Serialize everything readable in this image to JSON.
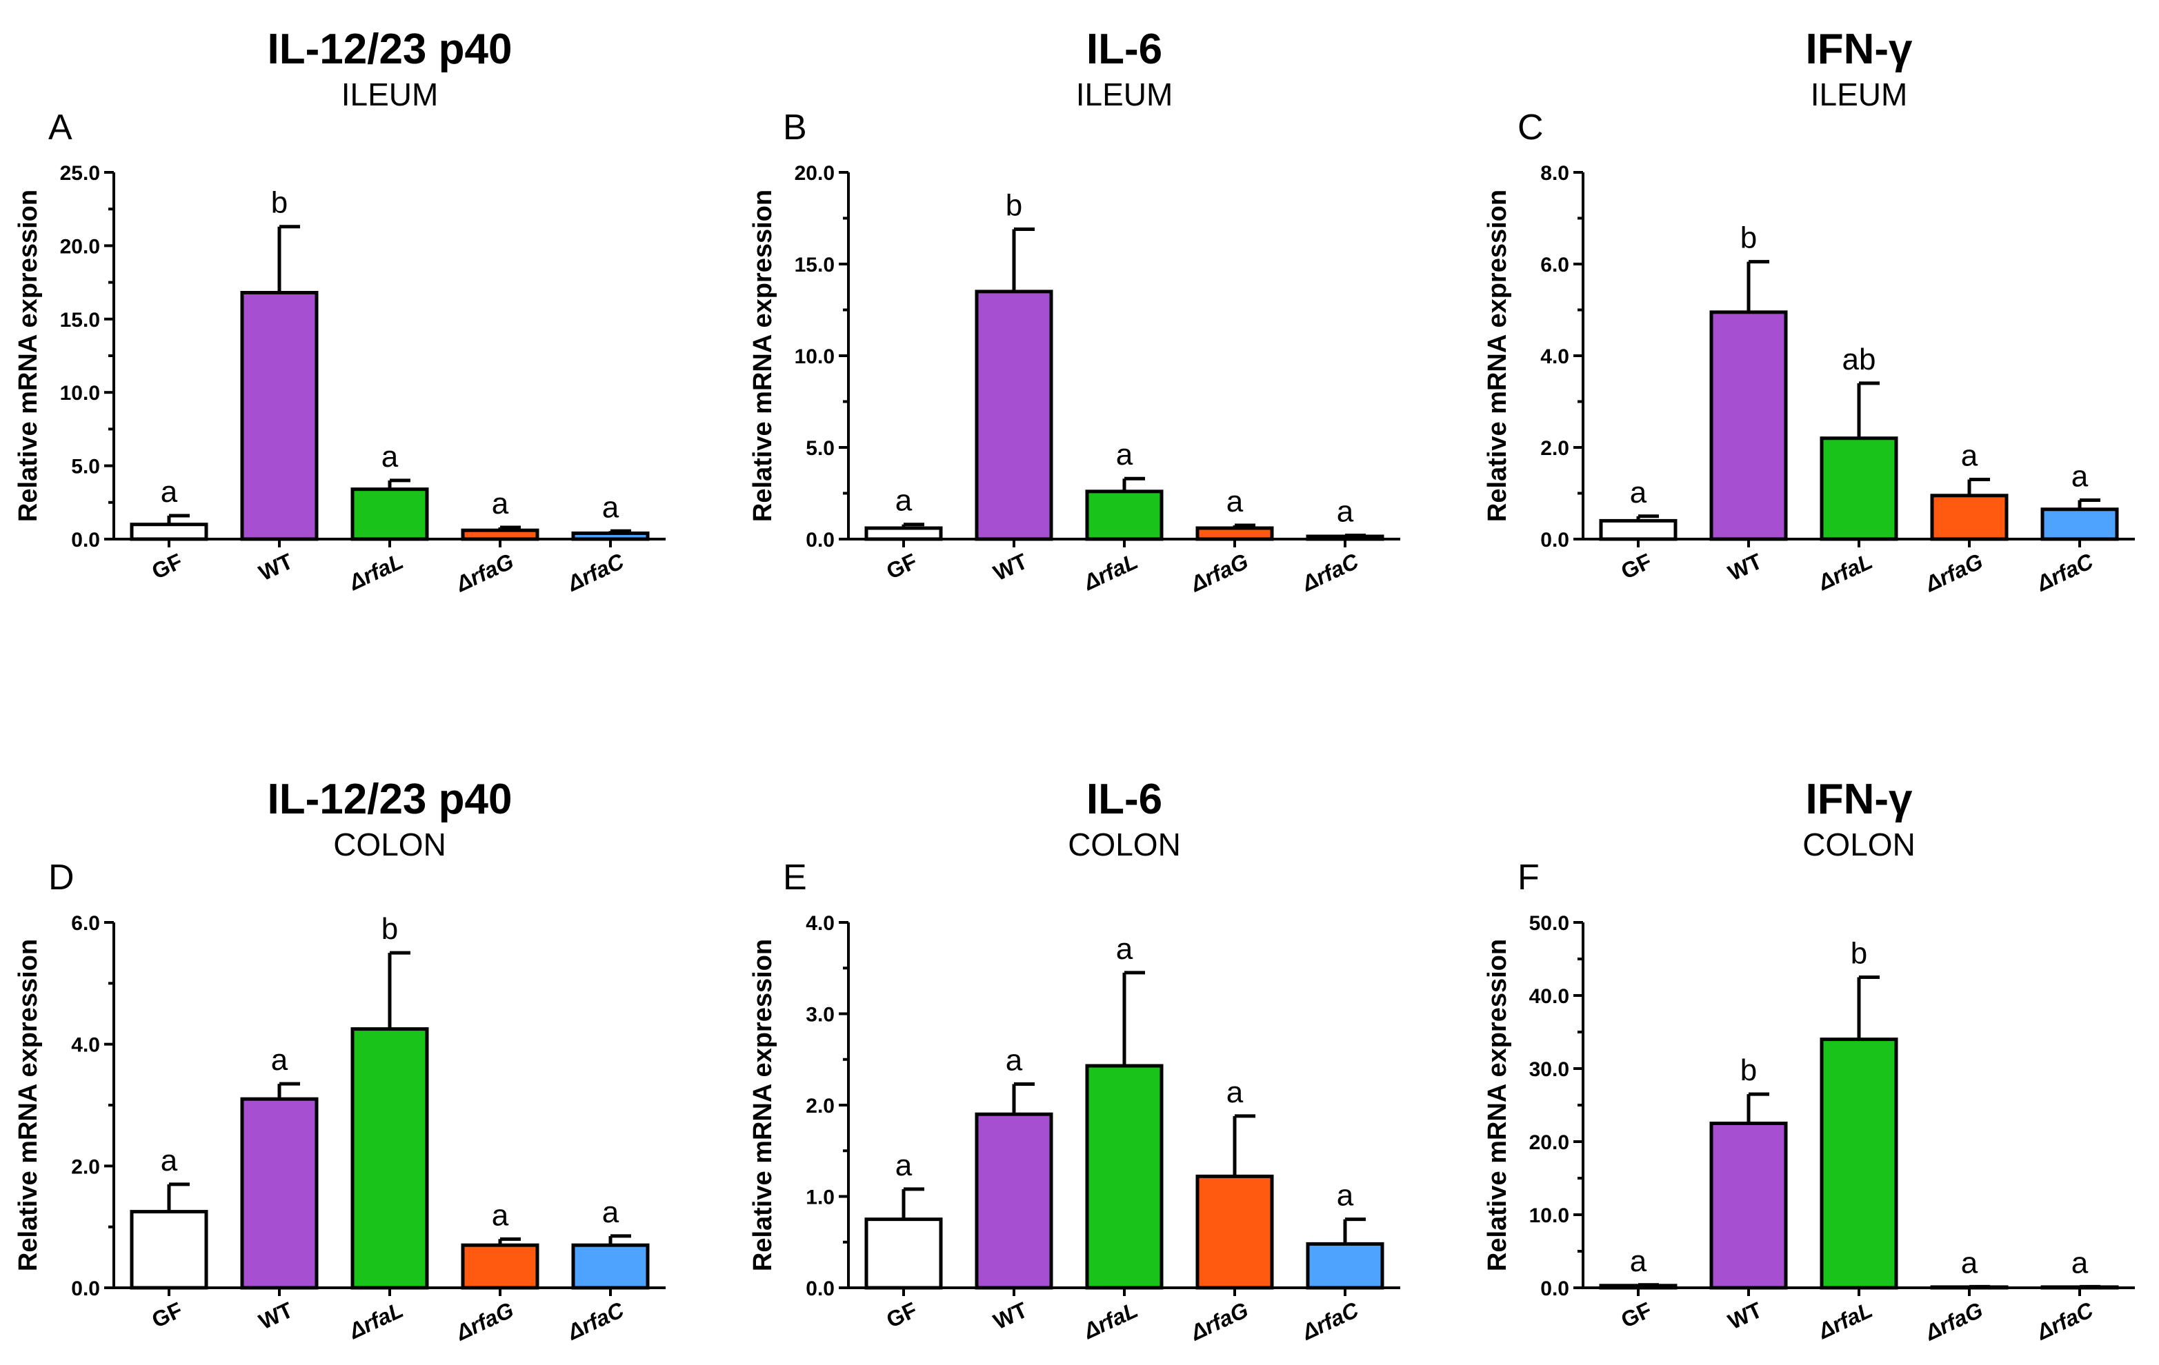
{
  "chart_data": [
    {
      "type": "bar",
      "panel": "A",
      "title": "IL-12/23 p40",
      "subtitle": "ILEUM",
      "ylabel": "Relative mRNA expression",
      "categories": [
        "GF",
        "WT",
        "ΔrfaL",
        "ΔrfaG",
        "ΔrfaC"
      ],
      "values": [
        1.0,
        16.8,
        3.4,
        0.6,
        0.4
      ],
      "errors": [
        0.6,
        4.5,
        0.6,
        0.2,
        0.15
      ],
      "significance": [
        "a",
        "b",
        "a",
        "a",
        "a"
      ],
      "ylim": [
        0,
        25
      ],
      "yticks": [
        "0.0",
        "5.0",
        "10.0",
        "15.0",
        "20.0",
        "25.0"
      ]
    },
    {
      "type": "bar",
      "panel": "B",
      "title": "IL-6",
      "subtitle": "ILEUM",
      "ylabel": "Relative mRNA expression",
      "categories": [
        "GF",
        "WT",
        "ΔrfaL",
        "ΔrfaG",
        "ΔrfaC"
      ],
      "values": [
        0.6,
        13.5,
        2.6,
        0.6,
        0.15
      ],
      "errors": [
        0.2,
        3.4,
        0.7,
        0.15,
        0.05
      ],
      "significance": [
        "a",
        "b",
        "a",
        "a",
        "a"
      ],
      "ylim": [
        0,
        20
      ],
      "yticks": [
        "0.0",
        "5.0",
        "10.0",
        "15.0",
        "20.0"
      ]
    },
    {
      "type": "bar",
      "panel": "C",
      "title": "IFN-γ",
      "subtitle": "ILEUM",
      "ylabel": "Relative mRNA expression",
      "categories": [
        "GF",
        "WT",
        "ΔrfaL",
        "ΔrfaG",
        "ΔrfaC"
      ],
      "values": [
        0.4,
        4.95,
        2.2,
        0.95,
        0.65
      ],
      "errors": [
        0.1,
        1.1,
        1.2,
        0.35,
        0.2
      ],
      "significance": [
        "a",
        "b",
        "ab",
        "a",
        "a"
      ],
      "ylim": [
        0,
        8
      ],
      "yticks": [
        "0.0",
        "2.0",
        "4.0",
        "6.0",
        "8.0"
      ]
    },
    {
      "type": "bar",
      "panel": "D",
      "title": "IL-12/23 p40",
      "subtitle": "COLON",
      "ylabel": "Relative mRNA expression",
      "categories": [
        "GF",
        "WT",
        "ΔrfaL",
        "ΔrfaG",
        "ΔrfaC"
      ],
      "values": [
        1.25,
        3.1,
        4.25,
        0.7,
        0.7
      ],
      "errors": [
        0.45,
        0.25,
        1.25,
        0.1,
        0.15
      ],
      "significance": [
        "a",
        "a",
        "b",
        "a",
        "a"
      ],
      "ylim": [
        0,
        6
      ],
      "yticks": [
        "0.0",
        "2.0",
        "4.0",
        "6.0"
      ]
    },
    {
      "type": "bar",
      "panel": "E",
      "title": "IL-6",
      "subtitle": "COLON",
      "ylabel": "Relative mRNA expression",
      "categories": [
        "GF",
        "WT",
        "ΔrfaL",
        "ΔrfaG",
        "ΔrfaC"
      ],
      "values": [
        0.75,
        1.9,
        2.43,
        1.22,
        0.48
      ],
      "errors": [
        0.33,
        0.33,
        1.02,
        0.66,
        0.27
      ],
      "significance": [
        "a",
        "a",
        "a",
        "a",
        "a"
      ],
      "ylim": [
        0,
        4
      ],
      "yticks": [
        "0.0",
        "1.0",
        "2.0",
        "3.0",
        "4.0"
      ]
    },
    {
      "type": "bar",
      "panel": "F",
      "title": "IFN-γ",
      "subtitle": "COLON",
      "ylabel": "Relative mRNA expression",
      "categories": [
        "GF",
        "WT",
        "ΔrfaL",
        "ΔrfaG",
        "ΔrfaC"
      ],
      "values": [
        0.3,
        22.5,
        34.0,
        0.1,
        0.1
      ],
      "errors": [
        0.1,
        4.0,
        8.5,
        0.05,
        0.05
      ],
      "significance": [
        "a",
        "b",
        "b",
        "a",
        "a"
      ],
      "ylim": [
        0,
        50
      ],
      "yticks": [
        "0.0",
        "10.0",
        "20.0",
        "30.0",
        "40.0",
        "50.0"
      ]
    }
  ],
  "colors": {
    "bars": [
      "#ffffff",
      "#a64fd0",
      "#19c319",
      "#ff5a0f",
      "#4da3ff"
    ],
    "axis": "#000000"
  }
}
